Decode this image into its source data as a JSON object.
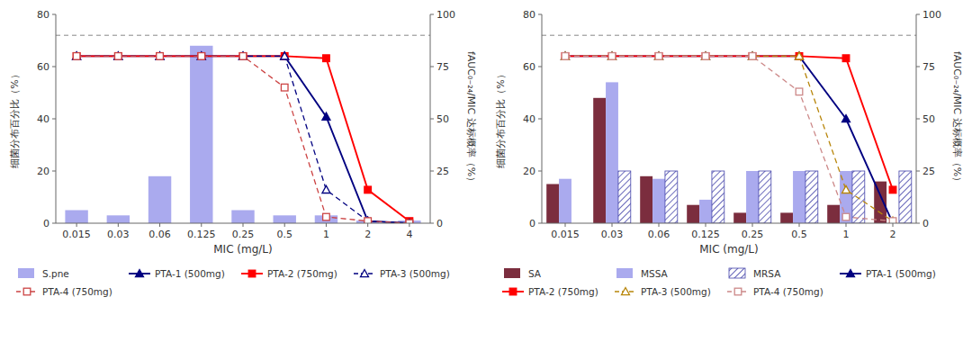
{
  "chart_data": [
    {
      "type": "bar",
      "x_label": "MIC (mg/L)",
      "y_label": "细菌分布百分比（%）",
      "y2_label": "fAUC₀₋₂₄/MIC 达标概率（%）",
      "categories": [
        "0.015",
        "0.03",
        "0.06",
        "0.125",
        "0.25",
        "0.5",
        "1",
        "2",
        "4"
      ],
      "series": [
        {
          "name": "S.pne",
          "type": "bar",
          "color": "#aaaaee",
          "values": [
            5,
            3,
            18,
            68,
            5,
            3,
            3,
            1,
            1
          ]
        },
        {
          "name": "PTA-1 (500mg)",
          "type": "line",
          "axis": "y2",
          "color": "navy",
          "marker": "triangle",
          "line_style": "solid",
          "values": [
            80,
            80,
            80,
            80,
            80,
            80,
            51,
            1,
            0
          ]
        },
        {
          "name": "PTA-2 (750mg)",
          "type": "line",
          "axis": "y2",
          "color": "red",
          "marker": "square",
          "line_style": "solid",
          "values": [
            80,
            80,
            80,
            80,
            80,
            80,
            79,
            16,
            1
          ]
        },
        {
          "name": "PTA-3 (500mg)",
          "type": "line",
          "axis": "y2",
          "color": "navy",
          "marker": "triangle-open",
          "line_style": "dashed",
          "values": [
            80,
            80,
            80,
            80,
            80,
            80,
            16,
            1,
            0
          ]
        },
        {
          "name": "PTA-4 (750mg)",
          "type": "line",
          "axis": "y2",
          "color": "#cc4444",
          "marker": "square-open",
          "line_style": "dashed",
          "values": [
            80,
            80,
            80,
            80,
            80,
            65,
            3,
            1,
            0
          ]
        }
      ],
      "hline": 90,
      "ylim": [
        0,
        80
      ],
      "yticks": [
        0,
        20,
        40,
        60,
        80
      ],
      "y2lim": [
        0,
        100
      ],
      "y2ticks": [
        0,
        25,
        50,
        75,
        100
      ],
      "grid": false,
      "legend": "bottom"
    },
    {
      "type": "bar",
      "x_label": "MIC (mg/L)",
      "y_label": "细菌分布百分比（%）",
      "y2_label": "fAUC₀₋₂₄/MIC 达标概率（%）",
      "categories": [
        "0.015",
        "0.03",
        "0.06",
        "0.125",
        "0.25",
        "0.5",
        "1",
        "2"
      ],
      "series": [
        {
          "name": "SA",
          "type": "bar",
          "color": "#7b2d3e",
          "values": [
            15,
            48,
            18,
            7,
            4,
            4,
            7,
            16
          ]
        },
        {
          "name": "MSSA",
          "type": "bar",
          "color": "#aaaaee",
          "values": [
            17,
            54,
            17,
            9,
            20,
            20,
            20,
            0
          ]
        },
        {
          "name": "MRSA",
          "type": "bar",
          "color": "#4444aa",
          "marker": "hatch",
          "values": [
            0,
            20,
            20,
            20,
            20,
            20,
            20,
            20
          ]
        },
        {
          "name": "PTA-1 (500mg)",
          "type": "line",
          "axis": "y2",
          "color": "navy",
          "marker": "triangle",
          "line_style": "solid",
          "values": [
            80,
            80,
            80,
            80,
            80,
            80,
            50,
            0
          ]
        },
        {
          "name": "PTA-2 (750mg)",
          "type": "line",
          "axis": "y2",
          "color": "red",
          "marker": "square",
          "line_style": "solid",
          "values": [
            80,
            80,
            80,
            80,
            80,
            80,
            79,
            16
          ]
        },
        {
          "name": "PTA-3 (500mg)",
          "type": "line",
          "axis": "y2",
          "color": "darkgoldenrod",
          "marker": "triangle-open",
          "line_style": "dashed",
          "values": [
            80,
            80,
            80,
            80,
            80,
            80,
            16,
            1
          ]
        },
        {
          "name": "PTA-4 (750mg)",
          "type": "line",
          "axis": "y2",
          "color": "#cc8888",
          "marker": "square-open",
          "line_style": "dashed",
          "values": [
            80,
            80,
            80,
            80,
            80,
            63,
            3,
            1
          ]
        }
      ],
      "hline": 90,
      "ylim": [
        0,
        80
      ],
      "yticks": [
        0,
        20,
        40,
        60,
        80
      ],
      "y2lim": [
        0,
        100
      ],
      "y2ticks": [
        0,
        25,
        50,
        75,
        100
      ],
      "grid": false,
      "legend": "bottom"
    }
  ]
}
